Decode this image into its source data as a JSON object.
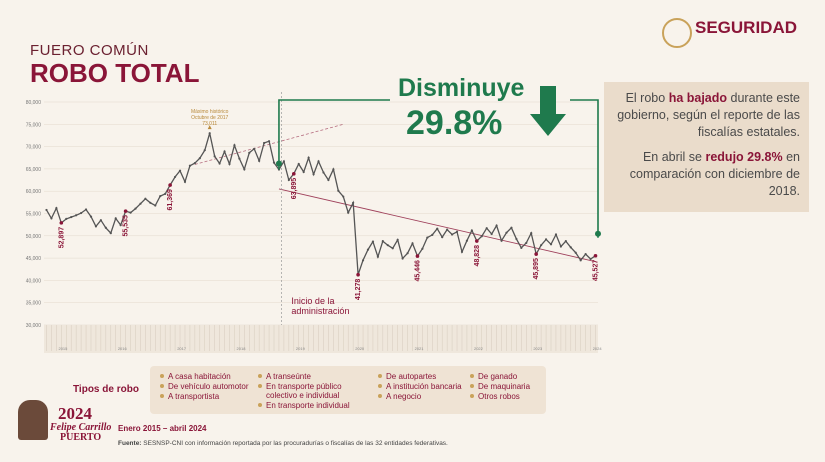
{
  "header": {
    "kicker": "FUERO COMÚN",
    "title": "ROBO TOTAL",
    "brand": "SEGURIDAD"
  },
  "callout": {
    "label": "Disminuye",
    "value": "29.8%"
  },
  "summary": {
    "p1": [
      "El robo ",
      "ha bajado",
      " durante este gobierno, según el reporte de las fiscalías estatales."
    ],
    "p2": [
      "En abril se ",
      "redujo 29.8%",
      " en comparación con diciembre de 2018."
    ]
  },
  "chart_data": {
    "type": "line",
    "color": "#555555",
    "highlight_color": "#8a1538",
    "categories": [
      null,
      null,
      null,
      null,
      null,
      null,
      null,
      null,
      null,
      null,
      null,
      null,
      null,
      null,
      null,
      null,
      null,
      null,
      null,
      null,
      null,
      null,
      null,
      null,
      null,
      null,
      null,
      null,
      null,
      null,
      null,
      null,
      null,
      null,
      null,
      null,
      null,
      null,
      null,
      null,
      null,
      null,
      null,
      null,
      null,
      null,
      null,
      null,
      null,
      null,
      null,
      null,
      null,
      null,
      null,
      null,
      null,
      null,
      null,
      null,
      null,
      null,
      null,
      null,
      null,
      null,
      null,
      null,
      null,
      null,
      null,
      null,
      null,
      null,
      null,
      null,
      null,
      null,
      null,
      null,
      null,
      null,
      null,
      null,
      null,
      null,
      null,
      null,
      null,
      null,
      null,
      null,
      null,
      null,
      null,
      null,
      null,
      null,
      null,
      null,
      null,
      null,
      null,
      null,
      null,
      null,
      null,
      null,
      null,
      null,
      null,
      null
    ],
    "values": [
      55800,
      53900,
      56200,
      52897,
      53800,
      54200,
      54600,
      55100,
      55900,
      54300,
      52100,
      53500,
      51800,
      50600,
      53900,
      52400,
      55535,
      55200,
      56100,
      57200,
      58300,
      57400,
      56800,
      58900,
      59400,
      61369,
      63200,
      64600,
      62100,
      65700,
      66300,
      67400,
      69200,
      73011,
      67800,
      66200,
      68900,
      66100,
      70300,
      67300,
      64900,
      68600,
      69500,
      66800,
      70800,
      71200,
      66400,
      64853,
      66700,
      62500,
      63895,
      66100,
      64300,
      67500,
      63800,
      66700,
      64200,
      62500,
      64900,
      60100,
      58800,
      55200,
      57400,
      41278,
      44500,
      46900,
      48700,
      45300,
      48800,
      47900,
      47200,
      49100,
      44900,
      46100,
      48300,
      45446,
      47100,
      49600,
      50200,
      51600,
      49700,
      51400,
      50300,
      50900,
      46400,
      48900,
      51200,
      48828,
      49900,
      51700,
      50400,
      52300,
      48900,
      50700,
      51800,
      49300,
      47300,
      48400,
      50600,
      45895,
      47900,
      49200,
      48100,
      50300,
      47600,
      48800,
      47400,
      46200,
      44500,
      45900,
      44800,
      45527
    ],
    "value_labels": [
      null,
      null,
      null,
      "52,897",
      null,
      null,
      null,
      null,
      null,
      null,
      null,
      null,
      null,
      null,
      null,
      null,
      "55,535",
      null,
      null,
      null,
      null,
      null,
      null,
      null,
      null,
      "61,369",
      null,
      null,
      null,
      null,
      null,
      null,
      null,
      null,
      null,
      null,
      null,
      null,
      null,
      null,
      null,
      null,
      null,
      null,
      null,
      null,
      null,
      null,
      null,
      null,
      "63,895",
      null,
      null,
      null,
      null,
      null,
      null,
      null,
      null,
      null,
      null,
      null,
      null,
      "41,278",
      null,
      null,
      null,
      null,
      null,
      null,
      null,
      null,
      null,
      null,
      null,
      "45,446",
      null,
      null,
      null,
      null,
      null,
      null,
      null,
      null,
      null,
      null,
      null,
      "48,828",
      null,
      null,
      null,
      null,
      null,
      null,
      null,
      null,
      null,
      null,
      null,
      "45,895",
      null,
      null,
      null,
      null,
      null,
      null,
      null,
      null,
      null,
      null,
      null,
      "45,527"
    ],
    "xticks": [
      {
        "value": 0,
        "label": "2015"
      },
      {
        "value": 12,
        "label": "2016"
      },
      {
        "value": 24,
        "label": "2017"
      },
      {
        "value": 36,
        "label": "2018"
      },
      {
        "value": 48,
        "label": "2019"
      },
      {
        "value": 60,
        "label": "2020"
      },
      {
        "value": 72,
        "label": "2021"
      },
      {
        "value": 84,
        "label": "2022"
      },
      {
        "value": 96,
        "label": "2023"
      },
      {
        "value": 108,
        "label": "2024"
      }
    ],
    "ylim": [
      30000,
      80000
    ],
    "yticks": [
      {
        "value": 30000,
        "label": "30,000"
      },
      {
        "value": 35000,
        "label": "35,000"
      },
      {
        "value": 40000,
        "label": "40,000"
      },
      {
        "value": 45000,
        "label": "45,000"
      },
      {
        "value": 50000,
        "label": "50,000"
      },
      {
        "value": 55000,
        "label": "55,000"
      },
      {
        "value": 60000,
        "label": "60,000"
      },
      {
        "value": 65000,
        "label": "65,000"
      },
      {
        "value": 70000,
        "label": "70,000"
      },
      {
        "value": 75000,
        "label": "75,000"
      },
      {
        "value": 80000,
        "label": "80,000"
      }
    ],
    "peak_note": {
      "index": 33,
      "line1": "Máximo histórico",
      "line2": "Octubre de 2017",
      "line3": "73,011"
    },
    "start_note": {
      "index": 47,
      "line1": "Inicio de la",
      "line2": "administración"
    }
  },
  "legend": {
    "title": "Tipos de robo",
    "columns": [
      [
        "A casa habitación",
        "De vehículo automotor",
        "A transportista"
      ],
      [
        "A transeúnte",
        "En transporte público colectivo e individual",
        "En transporte individual"
      ],
      [
        "De autopartes",
        "A institución bancaria",
        "A negocio"
      ],
      [
        "De ganado",
        "De maquinaria",
        "Otros robos"
      ]
    ]
  },
  "footer": {
    "period": "Enero 2015 – abril 2024",
    "source_label": "Fuente:",
    "source": " SESNSP-CNI con información reportada por las procuradurías o fiscalías de las 32 entidades federativas.",
    "logo_year": "2024",
    "logo_name": "Felipe Carrillo",
    "logo_surname": "PUERTO"
  }
}
